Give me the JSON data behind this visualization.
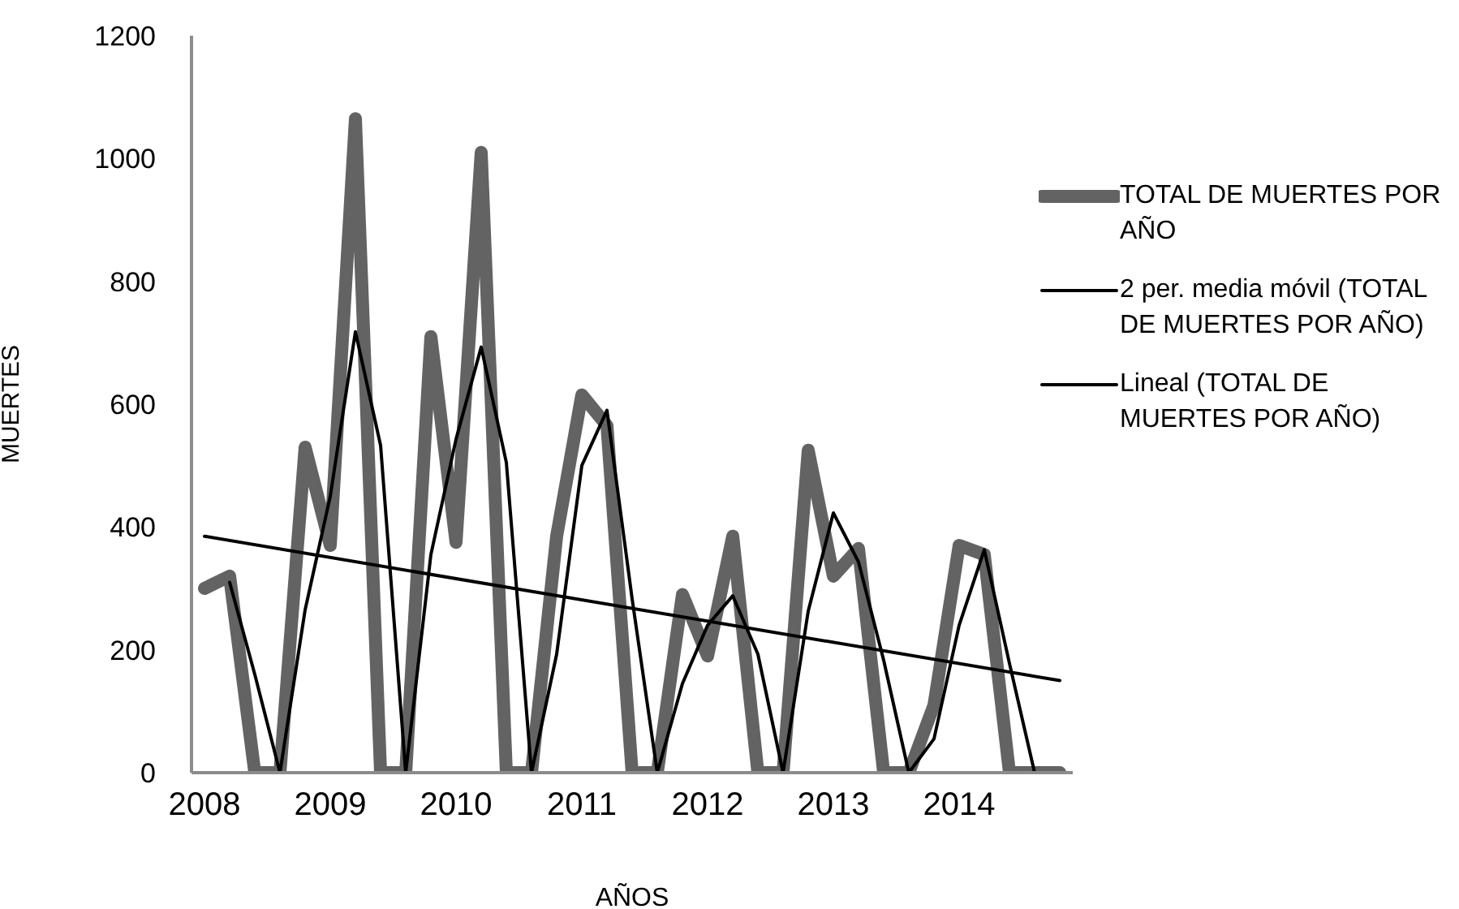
{
  "chart_data": {
    "type": "line",
    "xlabel": "AÑOS",
    "ylabel": "MUERTES",
    "categories": [
      "2008",
      null,
      null,
      null,
      null,
      "2009",
      null,
      null,
      null,
      null,
      "2010",
      null,
      null,
      null,
      null,
      "2011",
      null,
      null,
      null,
      null,
      "2012",
      null,
      null,
      null,
      null,
      "2013",
      null,
      null,
      null,
      null,
      "2014",
      null,
      null,
      null,
      null
    ],
    "series": [
      {
        "name": "TOTAL DE MUERTES POR AÑO",
        "color": "#636363",
        "values": [
          300,
          320,
          0,
          0,
          530,
          370,
          1065,
          0,
          0,
          710,
          375,
          1010,
          0,
          0,
          385,
          615,
          565,
          0,
          0,
          290,
          190,
          385,
          0,
          0,
          525,
          320,
          365,
          0,
          0,
          110,
          370,
          355,
          0,
          0,
          0
        ]
      },
      {
        "name": "2 per. media móvil (TOTAL DE MUERTES POR AÑO)",
        "color": "#000000",
        "values": [
          null,
          310,
          160,
          0,
          265,
          450,
          718,
          533,
          0,
          355,
          543,
          693,
          505,
          0,
          193,
          500,
          590,
          283,
          0,
          145,
          240,
          288,
          193,
          0,
          263,
          423,
          343,
          183,
          0,
          55,
          240,
          363,
          178,
          0,
          0
        ]
      },
      {
        "name": "Lineal (TOTAL DE MUERTES POR AÑO)",
        "color": "#000000",
        "values": [
          385,
          null,
          null,
          null,
          null,
          null,
          null,
          null,
          null,
          null,
          null,
          null,
          null,
          null,
          null,
          null,
          null,
          null,
          null,
          null,
          null,
          null,
          null,
          null,
          null,
          null,
          null,
          null,
          null,
          null,
          null,
          null,
          null,
          null,
          150
        ]
      }
    ],
    "ylim": [
      0,
      1200
    ],
    "yticks": [
      0,
      200,
      400,
      600,
      800,
      1000,
      1200
    ],
    "grid": false,
    "legend": "right",
    "marker": "none",
    "line_style": "solid"
  }
}
